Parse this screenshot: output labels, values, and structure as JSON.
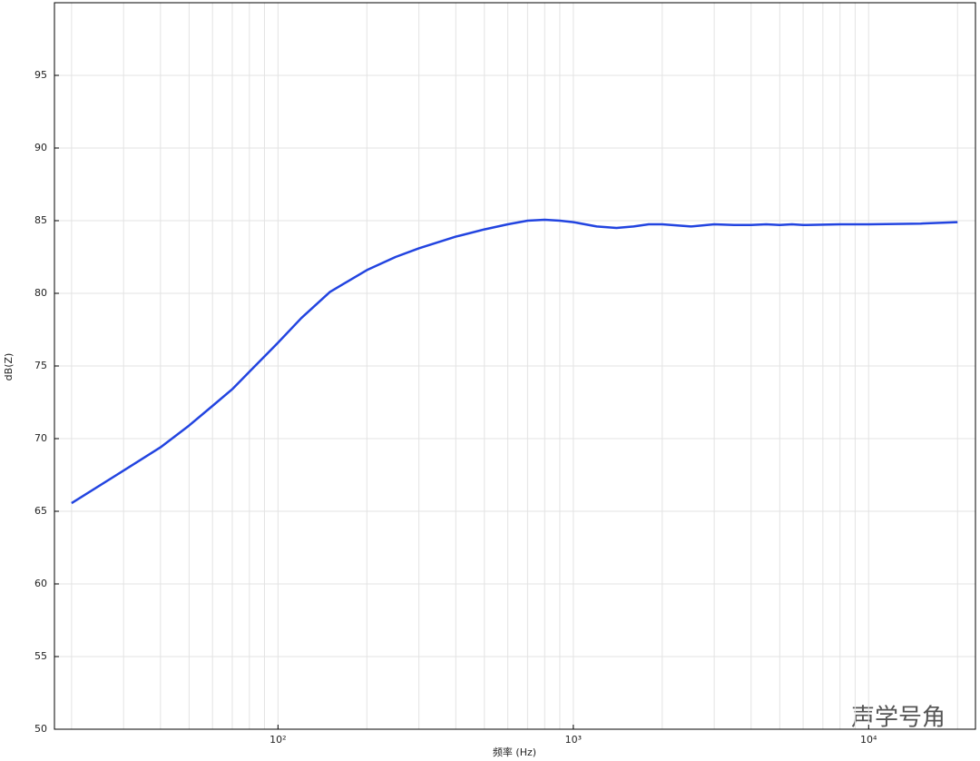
{
  "chart_data": {
    "type": "line",
    "ylabel": "dB(Z)",
    "xlabel": "频率 (Hz)",
    "watermark": "声学号角",
    "log_x": true,
    "grid": true,
    "xlim": [
      17.5,
      23000
    ],
    "ylim": [
      50,
      100
    ],
    "xticks": [
      {
        "value": 100,
        "label": "10²"
      },
      {
        "value": 1000,
        "label": "10³"
      },
      {
        "value": 10000,
        "label": "10⁴"
      }
    ],
    "xminorticks": [
      20,
      30,
      40,
      50,
      60,
      70,
      80,
      90,
      200,
      300,
      400,
      500,
      600,
      700,
      800,
      900,
      2000,
      3000,
      4000,
      5000,
      6000,
      7000,
      8000,
      9000,
      20000
    ],
    "yticks": [
      50,
      55,
      60,
      65,
      70,
      75,
      80,
      85,
      90,
      95
    ],
    "series": [
      {
        "color": "#2244e0",
        "x": [
          20,
          30,
          40,
          50,
          60,
          70,
          80,
          100,
          120,
          150,
          200,
          250,
          300,
          400,
          500,
          600,
          700,
          800,
          900,
          1000,
          1200,
          1400,
          1600,
          1800,
          2000,
          2500,
          3000,
          3500,
          4000,
          4500,
          5000,
          5500,
          6000,
          8000,
          10000,
          15000,
          20000
        ],
        "values": [
          65.56,
          67.8,
          69.4,
          70.9,
          72.25,
          73.4,
          74.6,
          76.6,
          78.3,
          80.1,
          81.6,
          82.5,
          83.1,
          83.9,
          84.4,
          84.75,
          85.0,
          85.06,
          85.0,
          84.9,
          84.6,
          84.5,
          84.6,
          84.75,
          84.75,
          84.6,
          84.75,
          84.7,
          84.7,
          84.75,
          84.7,
          84.75,
          84.7,
          84.75,
          84.75,
          84.8,
          84.9
        ]
      }
    ]
  }
}
